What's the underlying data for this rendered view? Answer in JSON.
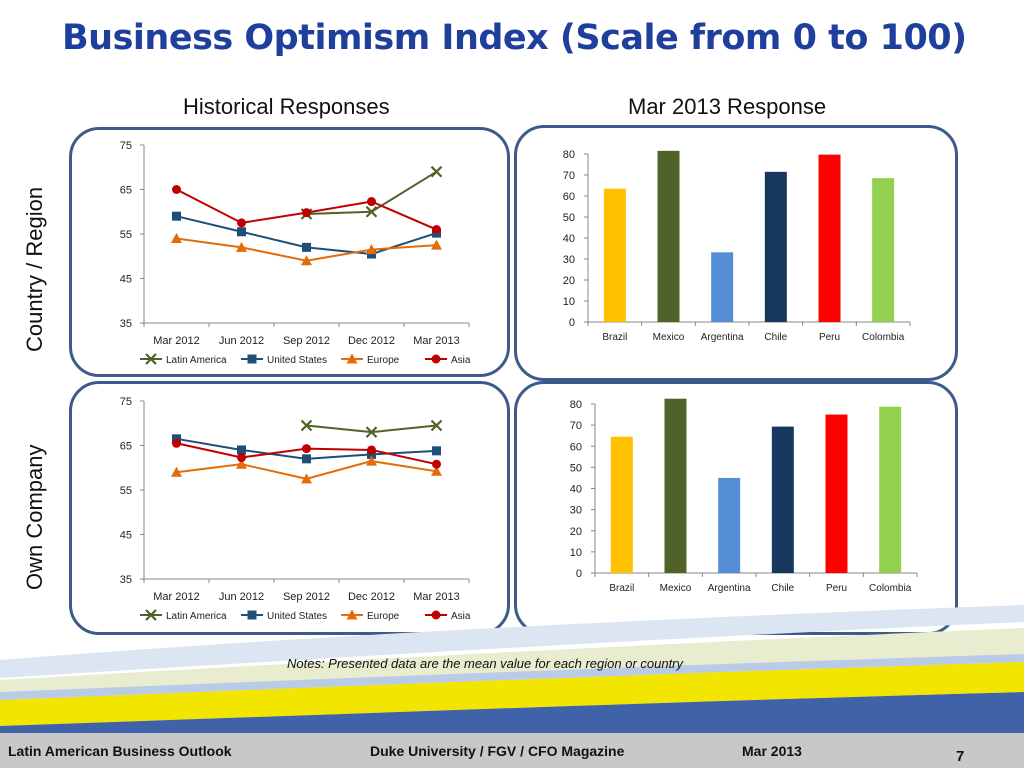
{
  "header": {
    "title": "Business Optimism Index (Scale from 0 to 100)",
    "historical_label": "Historical Responses",
    "current_label": "Mar 2013 Response",
    "row1_label": "Country / Region",
    "row2_label": "Own Company"
  },
  "notes": "Notes:  Presented data are the mean value for each region or country",
  "footer": {
    "left": "Latin American Business Outlook",
    "middle": "Duke University / FGV / CFO Magazine",
    "date": "Mar 2013",
    "page": "7"
  },
  "colors": {
    "Latin America": "#4f6228",
    "United States": "#1f4e79",
    "Europe": "#e36c09",
    "Asia": "#c00000",
    "Brazil": "#ffc000",
    "Mexico": "#4f6228",
    "Argentina": "#558ed5",
    "Chile": "#17375e",
    "Peru": "#ff0000",
    "Colombia": "#92d050",
    "title": "#1f3f9c",
    "panel_border": "#3d5a8a"
  },
  "chart_data": [
    {
      "type": "line",
      "x": [
        "Mar 2012",
        "Jun 2012",
        "Sep 2012",
        "Dec 2012",
        "Mar 2013"
      ],
      "ylim": [
        35,
        75
      ],
      "yticks": [
        35,
        45,
        55,
        65,
        75
      ],
      "series": [
        {
          "name": "Latin America",
          "marker": "x",
          "values": [
            null,
            null,
            59.5,
            60,
            69
          ]
        },
        {
          "name": "United States",
          "marker": "square",
          "values": [
            59,
            55.5,
            52,
            50.5,
            55.2
          ]
        },
        {
          "name": "Europe",
          "marker": "triangle",
          "values": [
            54,
            52,
            49,
            51.5,
            52.5
          ]
        },
        {
          "name": "Asia",
          "marker": "circle",
          "values": [
            65,
            57.5,
            59.8,
            62.3,
            56
          ]
        }
      ],
      "legend": "bottom"
    },
    {
      "type": "bar",
      "categories": [
        "Brazil",
        "Mexico",
        "Argentina",
        "Chile",
        "Peru",
        "Colombia"
      ],
      "values": [
        63.5,
        81.5,
        33.2,
        71.5,
        79.7,
        68.5
      ],
      "ylim": [
        0,
        80
      ],
      "yticks": [
        0,
        10,
        20,
        30,
        40,
        50,
        60,
        70,
        80
      ]
    },
    {
      "type": "line",
      "x": [
        "Mar 2012",
        "Jun 2012",
        "Sep 2012",
        "Dec 2012",
        "Mar 2013"
      ],
      "ylim": [
        35,
        75
      ],
      "yticks": [
        35,
        45,
        55,
        65,
        75
      ],
      "series": [
        {
          "name": "Latin America",
          "marker": "x",
          "values": [
            null,
            null,
            69.5,
            68,
            69.5
          ]
        },
        {
          "name": "United States",
          "marker": "square",
          "values": [
            66.5,
            64,
            62,
            63,
            63.8
          ]
        },
        {
          "name": "Europe",
          "marker": "triangle",
          "values": [
            59,
            60.8,
            57.5,
            61.5,
            59.2
          ]
        },
        {
          "name": "Asia",
          "marker": "circle",
          "values": [
            65.5,
            62.3,
            64.3,
            64,
            60.8
          ]
        }
      ],
      "legend": "bottom"
    },
    {
      "type": "bar",
      "categories": [
        "Brazil",
        "Mexico",
        "Argentina",
        "Chile",
        "Peru",
        "Colombia"
      ],
      "values": [
        64.5,
        82.5,
        45,
        69.3,
        75,
        78.7
      ],
      "ylim": [
        0,
        80
      ],
      "yticks": [
        0,
        10,
        20,
        30,
        40,
        50,
        60,
        70,
        80
      ]
    }
  ]
}
